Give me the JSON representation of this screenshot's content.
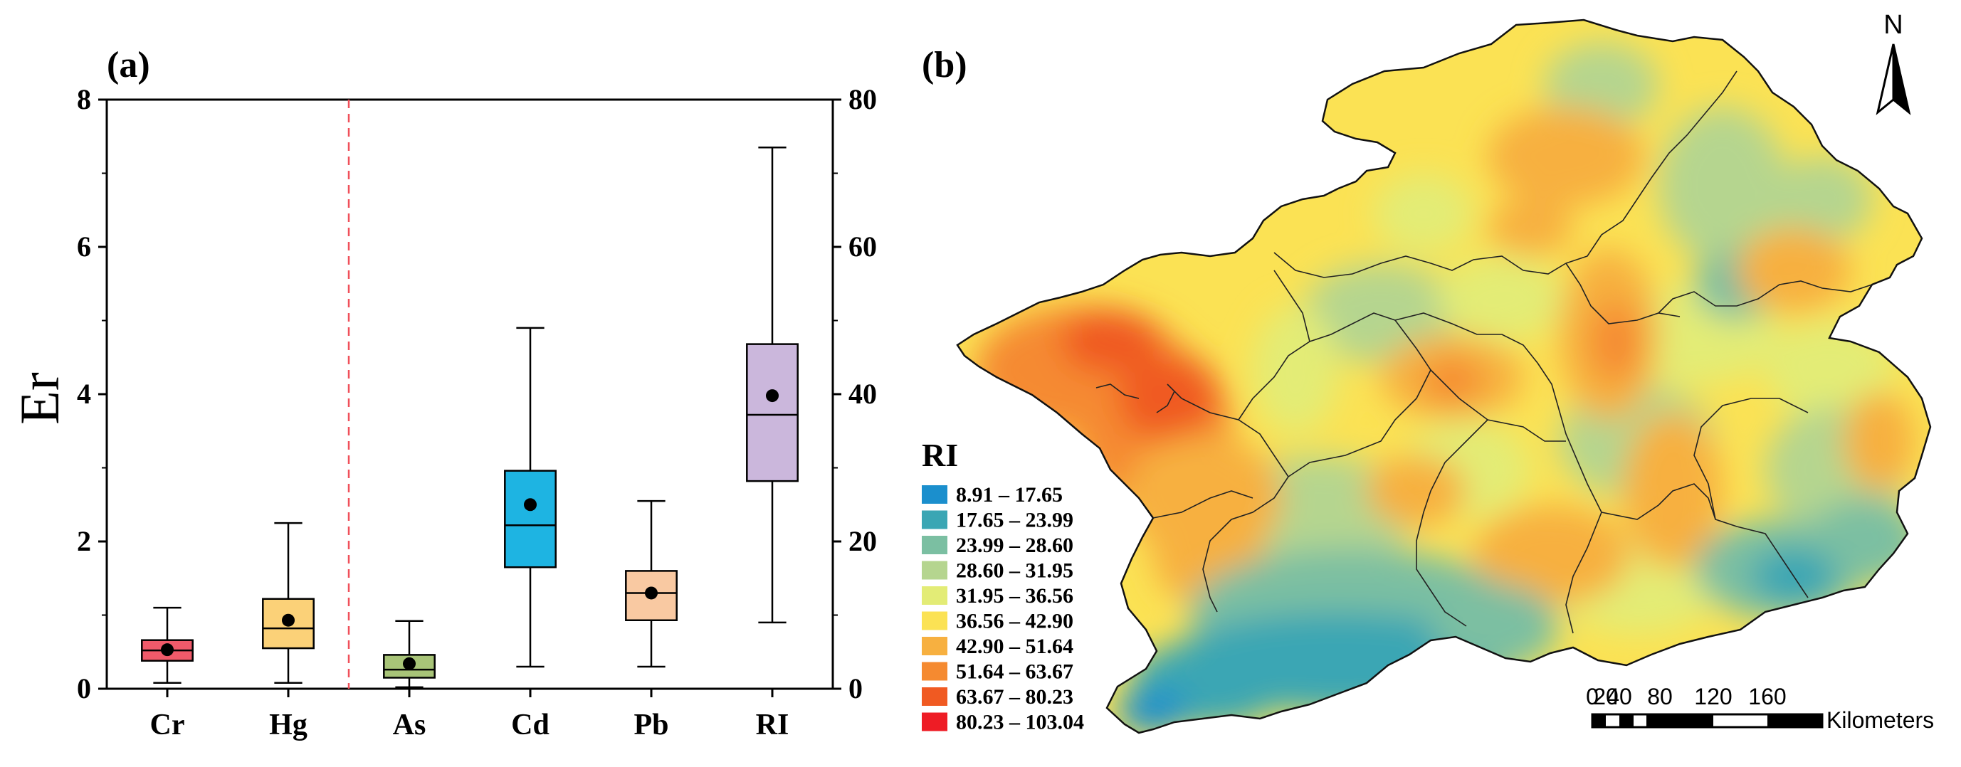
{
  "panel_a": "(a)",
  "panel_b": "(b)",
  "chart_data": [
    {
      "type": "box",
      "title": "",
      "ylabel": "Er",
      "left_axis": {
        "ylim": [
          0,
          8
        ],
        "ticks": [
          "0",
          "2",
          "4",
          "6",
          "8"
        ]
      },
      "right_axis": {
        "ylim": [
          0,
          80
        ],
        "ticks": [
          "0",
          "20",
          "40",
          "60",
          "80"
        ]
      },
      "divider_after": "Hg",
      "categories": [
        "Cr",
        "Hg",
        "As",
        "Cd",
        "Pb",
        "RI"
      ],
      "boxes": [
        {
          "name": "Cr",
          "axis": "left",
          "whisker_low": 0.08,
          "q1": 0.38,
          "median": 0.52,
          "q3": 0.66,
          "whisker_high": 1.1,
          "mean": 0.53,
          "color": "#f05a6a"
        },
        {
          "name": "Hg",
          "axis": "left",
          "whisker_low": 0.08,
          "q1": 0.55,
          "median": 0.82,
          "q3": 1.22,
          "whisker_high": 2.25,
          "mean": 0.93,
          "color": "#fbd178"
        },
        {
          "name": "As",
          "axis": "left",
          "whisker_low": 0.02,
          "q1": 0.15,
          "median": 0.26,
          "q3": 0.46,
          "whisker_high": 0.92,
          "mean": 0.34,
          "color": "#a8c478"
        },
        {
          "name": "Cd",
          "axis": "left",
          "whisker_low": 0.3,
          "q1": 1.65,
          "median": 2.22,
          "q3": 2.96,
          "whisker_high": 4.9,
          "mean": 2.5,
          "color": "#1eb4e2"
        },
        {
          "name": "Pb",
          "axis": "left",
          "whisker_low": 0.3,
          "q1": 0.93,
          "median": 1.3,
          "q3": 1.6,
          "whisker_high": 2.55,
          "mean": 1.3,
          "color": "#f9c9a2"
        },
        {
          "name": "RI",
          "axis": "right",
          "whisker_low": 9.0,
          "q1": 28.2,
          "median": 37.2,
          "q3": 46.8,
          "whisker_high": 73.5,
          "mean": 39.8,
          "color": "#cbb7dc"
        }
      ]
    },
    {
      "type": "choropleth-map",
      "legend_title": "RI",
      "legend": [
        {
          "label": "8.91 – 17.65",
          "color": "#1b8fcd"
        },
        {
          "label": "17.65 – 23.99",
          "color": "#3aa6b4"
        },
        {
          "label": "23.99 – 28.60",
          "color": "#7bbfa2"
        },
        {
          "label": "28.60 – 31.95",
          "color": "#b5d58f"
        },
        {
          "label": "31.95 – 36.56",
          "color": "#e3ec76"
        },
        {
          "label": "36.56 – 42.90",
          "color": "#fbe254"
        },
        {
          "label": "42.90 – 51.64",
          "color": "#f7b040"
        },
        {
          "label": "51.64 – 63.67",
          "color": "#f58a30"
        },
        {
          "label": "63.67 – 80.23",
          "color": "#f05a22"
        },
        {
          "label": "80.23 – 103.04",
          "color": "#ee1c25"
        }
      ],
      "north_label": "N",
      "scale_ticks": [
        "0",
        "20",
        "40",
        "80",
        "120",
        "160"
      ],
      "scale_unit": "Kilometers"
    }
  ]
}
